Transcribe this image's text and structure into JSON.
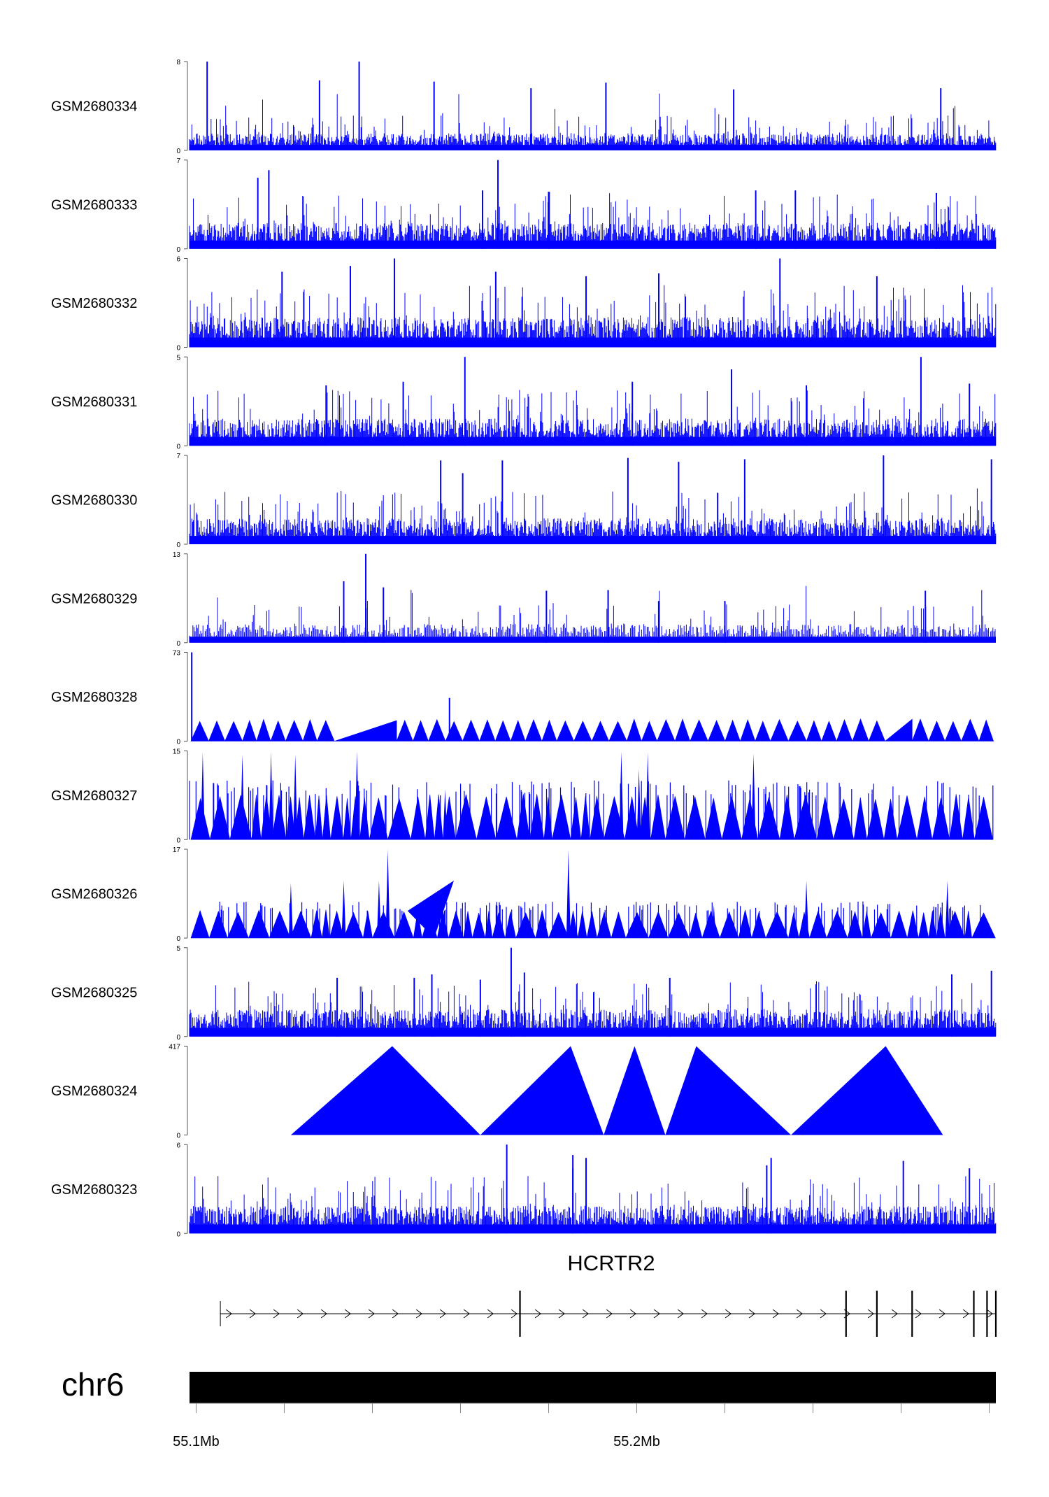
{
  "chart_data": {
    "type": "genome-browser-tracks",
    "signal_color": "#0000ff",
    "x_range_mb": [
      55.0985,
      55.2815
    ],
    "tracks": [
      {
        "name": "GSM2680334",
        "ylim": [
          0,
          8
        ],
        "pattern": "dense",
        "seed": 1,
        "base": 0.9,
        "peaks": [
          [
            55.1025,
            8
          ],
          [
            55.137,
            8
          ],
          [
            55.128,
            6.3
          ],
          [
            55.154,
            6.2
          ],
          [
            55.193,
            6.1
          ],
          [
            55.176,
            5.6
          ],
          [
            55.222,
            5.5
          ],
          [
            55.269,
            5.6
          ]
        ]
      },
      {
        "name": "GSM2680333",
        "ylim": [
          0,
          7
        ],
        "pattern": "dense",
        "seed": 2,
        "base": 1.2,
        "peaks": [
          [
            55.1685,
            7
          ],
          [
            55.1165,
            6.2
          ],
          [
            55.114,
            5.6
          ],
          [
            55.165,
            4.6
          ],
          [
            55.236,
            4.6
          ],
          [
            55.18,
            4.5
          ],
          [
            55.227,
            4.6
          ],
          [
            55.268,
            4.4
          ]
        ]
      },
      {
        "name": "GSM2680332",
        "ylim": [
          0,
          6
        ],
        "pattern": "dense",
        "seed": 3,
        "base": 1.2,
        "peaks": [
          [
            55.145,
            6
          ],
          [
            55.2325,
            6
          ],
          [
            55.168,
            5.1
          ],
          [
            55.135,
            5.5
          ],
          [
            55.1195,
            5.1
          ],
          [
            55.205,
            5
          ],
          [
            55.2545,
            4.8
          ],
          [
            55.1885,
            4.8
          ]
        ]
      },
      {
        "name": "GSM2680331",
        "ylim": [
          0,
          5
        ],
        "pattern": "dense",
        "seed": 4,
        "base": 0.9,
        "peaks": [
          [
            55.161,
            5
          ],
          [
            55.2645,
            5
          ],
          [
            55.2215,
            4.3
          ],
          [
            55.147,
            3.6
          ],
          [
            55.2755,
            3.5
          ],
          [
            55.199,
            3.6
          ],
          [
            55.1295,
            3.4
          ],
          [
            55.2385,
            3.4
          ]
        ]
      },
      {
        "name": "GSM2680330",
        "ylim": [
          0,
          7
        ],
        "pattern": "dense",
        "seed": 5,
        "base": 1.2,
        "peaks": [
          [
            55.256,
            7
          ],
          [
            55.198,
            6.8
          ],
          [
            55.1695,
            6.6
          ],
          [
            55.1555,
            6.6
          ],
          [
            55.1605,
            5.6
          ],
          [
            55.2095,
            6.5
          ],
          [
            55.2245,
            6.7
          ],
          [
            55.2805,
            6.7
          ]
        ]
      },
      {
        "name": "GSM2680329",
        "ylim": [
          0,
          13
        ],
        "pattern": "medium",
        "seed": 6,
        "base": 1.6,
        "peaks": [
          [
            55.1385,
            13
          ],
          [
            55.1935,
            7.7
          ],
          [
            55.2655,
            7.6
          ],
          [
            55.1795,
            7.6
          ],
          [
            55.205,
            6.1
          ],
          [
            55.22,
            6.1
          ],
          [
            55.1425,
            8.1
          ],
          [
            55.1335,
            9
          ]
        ]
      },
      {
        "name": "GSM2680328",
        "ylim": [
          0,
          73
        ],
        "pattern": "triangles",
        "seed": 7,
        "height": 17.5,
        "outliers": [
          [
            55.099,
            73
          ],
          [
            55.1575,
            35.5
          ]
        ],
        "gaps": [
          [
            55.1275,
            55.1455
          ],
          [
            55.2555,
            55.2625
          ]
        ]
      },
      {
        "name": "GSM2680327",
        "ylim": [
          0,
          15
        ],
        "pattern": "triangles-dense",
        "seed": 8,
        "height": 7.4,
        "peaks": [
          [
            55.1015,
            14.7
          ],
          [
            55.117,
            14.8
          ],
          [
            55.1365,
            14.9
          ],
          [
            55.1965,
            14.9
          ],
          [
            55.2025,
            14.7
          ],
          [
            55.2265,
            14.5
          ],
          [
            55.1225,
            14.4
          ],
          [
            55.1105,
            14.4
          ],
          [
            55.2005,
            11.9
          ],
          [
            55.1565,
            8.5
          ]
        ]
      },
      {
        "name": "GSM2680326",
        "ylim": [
          0,
          17
        ],
        "pattern": "triangles-dense",
        "seed": 9,
        "height": 5.2,
        "peaks": [
          [
            55.1435,
            17
          ],
          [
            55.1845,
            16.9
          ],
          [
            55.1415,
            11
          ],
          [
            55.1335,
            11
          ],
          [
            55.2385,
            11
          ],
          [
            55.2705,
            11
          ],
          [
            55.1215,
            10.5
          ],
          [
            55.2175,
            6.3
          ]
        ],
        "bigtri": [
          [
            55.148,
            55.154,
            55.1585,
            11
          ]
        ]
      },
      {
        "name": "GSM2680325",
        "ylim": [
          0,
          5
        ],
        "pattern": "dense",
        "seed": 10,
        "base": 0.9,
        "peaks": [
          [
            55.1715,
            5
          ],
          [
            55.1535,
            3.5
          ],
          [
            55.1745,
            3.6
          ],
          [
            55.2805,
            3.7
          ],
          [
            55.2715,
            3.5
          ],
          [
            55.2075,
            3.3
          ],
          [
            55.132,
            3.3
          ],
          [
            55.1495,
            3.3
          ],
          [
            55.1645,
            3.2
          ]
        ]
      },
      {
        "name": "GSM2680324",
        "ylim": [
          0,
          417
        ],
        "pattern": "triangles-fixed",
        "triangles": [
          [
            55.1215,
            55.1445,
            55.1645,
            417
          ],
          [
            55.1645,
            55.185,
            55.1925,
            417
          ],
          [
            55.1925,
            55.1995,
            55.2065,
            417
          ],
          [
            55.2065,
            55.2135,
            55.235,
            417
          ],
          [
            55.235,
            55.2565,
            55.2695,
            417
          ]
        ]
      },
      {
        "name": "GSM2680323",
        "ylim": [
          0,
          6
        ],
        "pattern": "dense",
        "seed": 12,
        "base": 1.1,
        "peaks": [
          [
            55.1705,
            6
          ],
          [
            55.1855,
            5.3
          ],
          [
            55.1885,
            5.1
          ],
          [
            55.2305,
            5.1
          ],
          [
            55.2605,
            4.9
          ],
          [
            55.2295,
            4.6
          ],
          [
            55.1855,
            4.4
          ],
          [
            55.2755,
            4.4
          ]
        ]
      }
    ],
    "gene": {
      "name": "HCRTR2",
      "strand": "+",
      "start_mb": 55.1055,
      "end_mb": 55.2815,
      "exons_mb": [
        55.1055,
        55.1735,
        55.2475,
        55.2545,
        55.2625,
        55.2765,
        55.2795,
        55.2815
      ]
    },
    "chromosome": {
      "name": "chr6",
      "tick_labels": [
        {
          "mb": 55.1,
          "label": "55.1Mb"
        },
        {
          "mb": 55.2,
          "label": "55.2Mb"
        }
      ],
      "minor_ticks_mb": [
        55.1,
        55.12,
        55.14,
        55.16,
        55.18,
        55.2,
        55.22,
        55.24,
        55.26,
        55.28
      ]
    }
  }
}
